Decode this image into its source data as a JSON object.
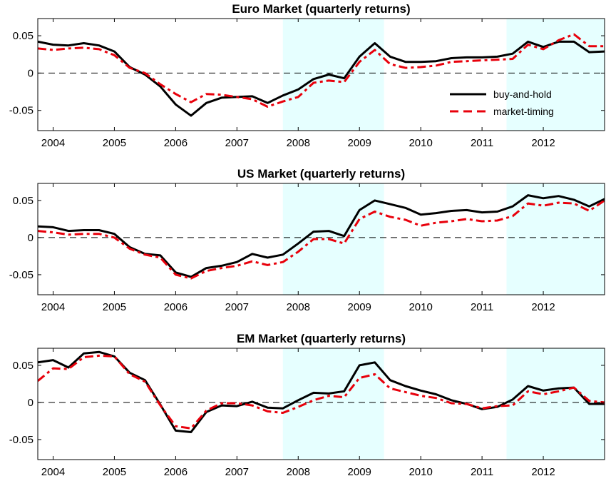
{
  "chart_data": [
    {
      "type": "line",
      "title": "Euro Market (quarterly returns)",
      "x": [
        2003.75,
        2004.0,
        2004.25,
        2004.5,
        2004.75,
        2005.0,
        2005.25,
        2005.5,
        2005.75,
        2006.0,
        2006.25,
        2006.5,
        2006.75,
        2007.0,
        2007.25,
        2007.5,
        2007.75,
        2008.0,
        2008.25,
        2008.5,
        2008.75,
        2009.0,
        2009.25,
        2009.5,
        2009.75,
        2010.0,
        2010.25,
        2010.5,
        2010.75,
        2011.0,
        2011.25,
        2011.5,
        2011.75,
        2012.0,
        2012.25,
        2012.5,
        2012.75,
        2013.0
      ],
      "xlim": [
        2003.75,
        2013.0
      ],
      "ylim": [
        -0.077,
        0.073
      ],
      "yticks": [
        0.05,
        0,
        -0.05
      ],
      "ytick_labels": [
        "0.05",
        "0",
        "-0.05"
      ],
      "xticks": [
        2004.0,
        2005.0,
        2006.0,
        2007.0,
        2008.0,
        2009.0,
        2010.0,
        2011.0,
        2012.0
      ],
      "xtick_labels": [
        "2004",
        "2005",
        "2006",
        "2007",
        "2008",
        "2009",
        "2010",
        "2011",
        "2012"
      ],
      "zero_line": "dashed",
      "shaded_periods": [
        [
          2007.75,
          2009.4
        ],
        [
          2011.4,
          2013.0
        ]
      ],
      "shade_color": "#e6ffff",
      "legend": {
        "placement": "right",
        "entries": [
          "buy-and-hold",
          "market-timing"
        ]
      },
      "series": [
        {
          "name": "buy-and-hold",
          "color": "#000000",
          "style": "solid",
          "values": [
            0.042,
            0.038,
            0.037,
            0.04,
            0.037,
            0.029,
            0.008,
            -0.002,
            -0.018,
            -0.042,
            -0.057,
            -0.04,
            -0.033,
            -0.032,
            -0.031,
            -0.04,
            -0.03,
            -0.022,
            -0.008,
            -0.002,
            -0.007,
            0.022,
            0.04,
            0.022,
            0.015,
            0.015,
            0.016,
            0.02,
            0.021,
            0.021,
            0.022,
            0.026,
            0.042,
            0.035,
            0.042,
            0.042,
            0.028,
            0.029
          ]
        },
        {
          "name": "market-timing",
          "color": "#e8000b",
          "style": "dashdot",
          "values": [
            0.033,
            0.031,
            0.033,
            0.034,
            0.032,
            0.024,
            0.007,
            0.0,
            -0.015,
            -0.028,
            -0.039,
            -0.028,
            -0.029,
            -0.032,
            -0.035,
            -0.045,
            -0.038,
            -0.032,
            -0.013,
            -0.01,
            -0.012,
            0.015,
            0.031,
            0.012,
            0.007,
            0.008,
            0.01,
            0.015,
            0.016,
            0.017,
            0.018,
            0.019,
            0.038,
            0.032,
            0.044,
            0.052,
            0.036,
            0.036
          ]
        }
      ]
    },
    {
      "type": "line",
      "title": "US Market (quarterly returns)",
      "x": [
        2003.75,
        2004.0,
        2004.25,
        2004.5,
        2004.75,
        2005.0,
        2005.25,
        2005.5,
        2005.75,
        2006.0,
        2006.25,
        2006.5,
        2006.75,
        2007.0,
        2007.25,
        2007.5,
        2007.75,
        2008.0,
        2008.25,
        2008.5,
        2008.75,
        2009.0,
        2009.25,
        2009.5,
        2009.75,
        2010.0,
        2010.25,
        2010.5,
        2010.75,
        2011.0,
        2011.25,
        2011.5,
        2011.75,
        2012.0,
        2012.25,
        2012.5,
        2012.75,
        2013.0
      ],
      "xlim": [
        2003.75,
        2013.0
      ],
      "ylim": [
        -0.077,
        0.073
      ],
      "yticks": [
        0.05,
        0,
        -0.05
      ],
      "ytick_labels": [
        "0.05",
        "0",
        "-0.05"
      ],
      "xticks": [
        2004.0,
        2005.0,
        2006.0,
        2007.0,
        2008.0,
        2009.0,
        2010.0,
        2011.0,
        2012.0
      ],
      "xtick_labels": [
        "2004",
        "2005",
        "2006",
        "2007",
        "2008",
        "2009",
        "2010",
        "2011",
        "2012"
      ],
      "zero_line": "dashed",
      "shaded_periods": [
        [
          2007.75,
          2009.4
        ],
        [
          2011.4,
          2013.0
        ]
      ],
      "shade_color": "#e6ffff",
      "series": [
        {
          "name": "buy-and-hold",
          "color": "#000000",
          "style": "solid",
          "values": [
            0.015,
            0.014,
            0.009,
            0.01,
            0.01,
            0.005,
            -0.013,
            -0.022,
            -0.024,
            -0.047,
            -0.053,
            -0.041,
            -0.038,
            -0.033,
            -0.022,
            -0.027,
            -0.023,
            -0.008,
            0.008,
            0.009,
            0.002,
            0.037,
            0.05,
            0.045,
            0.04,
            0.031,
            0.033,
            0.036,
            0.037,
            0.034,
            0.035,
            0.042,
            0.057,
            0.053,
            0.056,
            0.051,
            0.042,
            0.052
          ]
        },
        {
          "name": "market-timing",
          "color": "#e8000b",
          "style": "dashdot",
          "values": [
            0.009,
            0.007,
            0.004,
            0.005,
            0.005,
            0.0,
            -0.015,
            -0.023,
            -0.027,
            -0.05,
            -0.055,
            -0.045,
            -0.041,
            -0.038,
            -0.032,
            -0.037,
            -0.033,
            -0.019,
            -0.002,
            -0.002,
            -0.008,
            0.025,
            0.035,
            0.028,
            0.024,
            0.016,
            0.02,
            0.022,
            0.025,
            0.022,
            0.023,
            0.029,
            0.046,
            0.043,
            0.047,
            0.046,
            0.036,
            0.05
          ]
        }
      ]
    },
    {
      "type": "line",
      "title": "EM Market (quarterly returns)",
      "x": [
        2003.75,
        2004.0,
        2004.25,
        2004.5,
        2004.75,
        2005.0,
        2005.25,
        2005.5,
        2005.75,
        2006.0,
        2006.25,
        2006.5,
        2006.75,
        2007.0,
        2007.25,
        2007.5,
        2007.75,
        2008.0,
        2008.25,
        2008.5,
        2008.75,
        2009.0,
        2009.25,
        2009.5,
        2009.75,
        2010.0,
        2010.25,
        2010.5,
        2010.75,
        2011.0,
        2011.25,
        2011.5,
        2011.75,
        2012.0,
        2012.25,
        2012.5,
        2012.75,
        2013.0
      ],
      "xlim": [
        2003.75,
        2013.0
      ],
      "ylim": [
        -0.077,
        0.073
      ],
      "yticks": [
        0.05,
        0,
        -0.05
      ],
      "ytick_labels": [
        "0.05",
        "0",
        "-0.05"
      ],
      "xticks": [
        2004.0,
        2005.0,
        2006.0,
        2007.0,
        2008.0,
        2009.0,
        2010.0,
        2011.0,
        2012.0
      ],
      "xtick_labels": [
        "2004",
        "2005",
        "2006",
        "2007",
        "2008",
        "2009",
        "2010",
        "2011",
        "2012"
      ],
      "zero_line": "dashed",
      "shaded_periods": [
        [
          2007.75,
          2009.4
        ],
        [
          2011.4,
          2013.0
        ]
      ],
      "shade_color": "#e6ffff",
      "series": [
        {
          "name": "buy-and-hold",
          "color": "#000000",
          "style": "solid",
          "values": [
            0.054,
            0.057,
            0.047,
            0.066,
            0.068,
            0.062,
            0.04,
            0.03,
            -0.003,
            -0.038,
            -0.04,
            -0.013,
            -0.004,
            -0.005,
            0.001,
            -0.007,
            -0.008,
            0.003,
            0.013,
            0.012,
            0.015,
            0.05,
            0.054,
            0.03,
            0.022,
            0.016,
            0.011,
            0.003,
            -0.002,
            -0.009,
            -0.006,
            0.004,
            0.022,
            0.016,
            0.019,
            0.02,
            -0.002,
            -0.002
          ]
        },
        {
          "name": "market-timing",
          "color": "#e8000b",
          "style": "dashdot",
          "values": [
            0.029,
            0.046,
            0.045,
            0.061,
            0.063,
            0.062,
            0.038,
            0.028,
            -0.004,
            -0.032,
            -0.035,
            -0.011,
            -0.001,
            -0.001,
            -0.004,
            -0.012,
            -0.014,
            -0.006,
            0.003,
            0.009,
            0.007,
            0.033,
            0.038,
            0.019,
            0.014,
            0.009,
            0.006,
            -0.001,
            -0.002,
            -0.008,
            -0.005,
            -0.004,
            0.015,
            0.011,
            0.015,
            0.02,
            0.002,
            0.0
          ]
        }
      ]
    }
  ]
}
